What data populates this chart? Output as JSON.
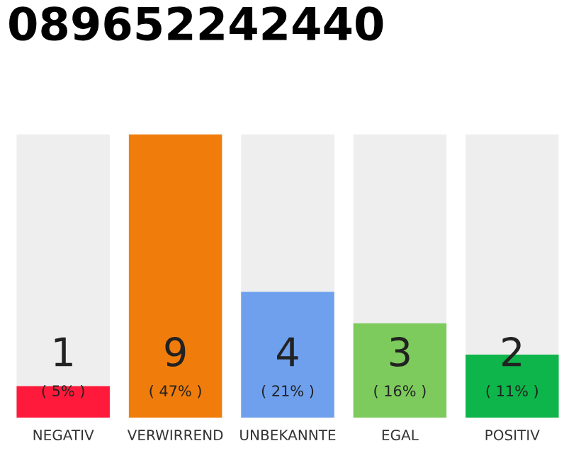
{
  "chart_data": {
    "type": "bar",
    "title": "089652242440",
    "categories": [
      "NEGATIV",
      "VERWIRREND",
      "UNBEKANNTE",
      "EGAL",
      "POSITIV"
    ],
    "values": [
      1,
      9,
      4,
      3,
      2
    ],
    "colors": [
      "#ff1a3c",
      "#f07d0b",
      "#6ea0ee",
      "#7dcb5c",
      "#0db54a"
    ],
    "value_labels": [
      "1\n( 5% )",
      "9\n( 47% )",
      "4\n( 21% )",
      "3\n( 16% )",
      "2\n( 11% )"
    ],
    "grid": false,
    "legend": false
  }
}
